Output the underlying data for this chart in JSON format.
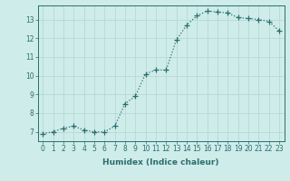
{
  "x": [
    0,
    1,
    2,
    3,
    4,
    5,
    6,
    7,
    8,
    9,
    10,
    11,
    12,
    13,
    14,
    15,
    16,
    17,
    18,
    19,
    20,
    21,
    22,
    23
  ],
  "y": [
    6.9,
    7.0,
    7.2,
    7.3,
    7.1,
    7.0,
    7.0,
    7.3,
    8.5,
    8.9,
    10.1,
    10.3,
    10.3,
    11.9,
    12.7,
    13.2,
    13.45,
    13.4,
    13.35,
    13.1,
    13.05,
    13.0,
    12.9,
    12.4
  ],
  "xlabel": "Humidex (Indice chaleur)",
  "bg_color": "#cdecea",
  "line_color": "#2d6e6e",
  "marker": "+",
  "marker_size": 4,
  "linewidth": 0.9,
  "ylim": [
    6.5,
    13.75
  ],
  "xlim": [
    -0.5,
    23.5
  ],
  "yticks": [
    7,
    8,
    9,
    10,
    11,
    12,
    13
  ],
  "xticks": [
    0,
    1,
    2,
    3,
    4,
    5,
    6,
    7,
    8,
    9,
    10,
    11,
    12,
    13,
    14,
    15,
    16,
    17,
    18,
    19,
    20,
    21,
    22,
    23
  ],
  "grid_color": "#b8d8d4",
  "tick_fontsize": 5.5,
  "xlabel_fontsize": 6.5,
  "tick_color": "#2d6e6e",
  "axis_color": "#2d6e6e"
}
